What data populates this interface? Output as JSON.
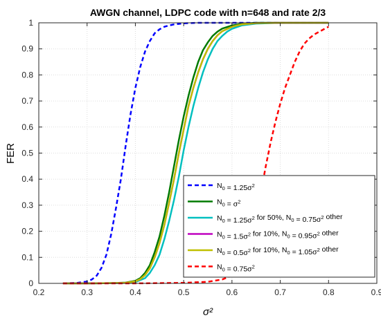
{
  "chart_data": {
    "type": "line",
    "title": "AWGN channel, LDPC code with n=648 and rate 2/3",
    "xlabel": "σ²",
    "ylabel": "FER",
    "xlim": [
      0.2,
      0.9
    ],
    "ylim": [
      0,
      1
    ],
    "xticks": [
      "0.2",
      "0.3",
      "0.4",
      "0.5",
      "0.6",
      "0.7",
      "0.8",
      "0.9"
    ],
    "yticks": [
      "0",
      "0.1",
      "0.2",
      "0.3",
      "0.4",
      "0.5",
      "0.6",
      "0.7",
      "0.8",
      "0.9",
      "1"
    ],
    "grid": true,
    "legend_position": "bottom-right",
    "series": [
      {
        "name": "N0 = 1.25σ²",
        "legend_parts": [
          "N",
          "0",
          " = 1.25σ",
          "2",
          ""
        ],
        "color": "#0000ff",
        "style": "dashed",
        "x": [
          0.25,
          0.28,
          0.3,
          0.31,
          0.32,
          0.33,
          0.34,
          0.35,
          0.36,
          0.37,
          0.38,
          0.39,
          0.4,
          0.41,
          0.42,
          0.43,
          0.44,
          0.45,
          0.46,
          0.47,
          0.48,
          0.5,
          0.53,
          0.56,
          0.6,
          0.65,
          0.7,
          0.8
        ],
        "y": [
          0.0,
          0.002,
          0.007,
          0.015,
          0.03,
          0.06,
          0.11,
          0.19,
          0.29,
          0.4,
          0.53,
          0.65,
          0.75,
          0.83,
          0.89,
          0.93,
          0.96,
          0.975,
          0.985,
          0.99,
          0.994,
          0.998,
          1.0,
          1.0,
          1.0,
          1.0,
          1.0,
          1.0
        ]
      },
      {
        "name": "N0 = σ²",
        "legend_parts": [
          "N",
          "0",
          " = σ",
          "2",
          ""
        ],
        "color": "#007a00",
        "style": "solid",
        "x": [
          0.25,
          0.3,
          0.35,
          0.38,
          0.4,
          0.41,
          0.42,
          0.43,
          0.44,
          0.45,
          0.46,
          0.47,
          0.48,
          0.49,
          0.5,
          0.51,
          0.52,
          0.53,
          0.54,
          0.55,
          0.56,
          0.57,
          0.58,
          0.6,
          0.62,
          0.65,
          0.7,
          0.8
        ],
        "y": [
          0.0,
          0.0,
          0.001,
          0.003,
          0.01,
          0.02,
          0.04,
          0.07,
          0.12,
          0.18,
          0.26,
          0.35,
          0.45,
          0.55,
          0.64,
          0.72,
          0.79,
          0.85,
          0.895,
          0.925,
          0.95,
          0.966,
          0.978,
          0.99,
          0.996,
          1.0,
          1.0,
          1.0
        ]
      },
      {
        "name": "N0 = 1.25σ² for 50%, N0 = 0.75σ² other",
        "legend_parts": [
          "N",
          "0",
          " = 1.25σ",
          "2",
          " for 50%, N",
          "0",
          " = 0.75σ",
          "2",
          " other"
        ],
        "color": "#00bfbf",
        "style": "solid",
        "x": [
          0.25,
          0.3,
          0.35,
          0.38,
          0.4,
          0.42,
          0.43,
          0.44,
          0.45,
          0.46,
          0.47,
          0.48,
          0.49,
          0.5,
          0.51,
          0.52,
          0.53,
          0.54,
          0.55,
          0.56,
          0.57,
          0.58,
          0.59,
          0.6,
          0.62,
          0.65,
          0.7,
          0.8
        ],
        "y": [
          0.0,
          0.0,
          0.001,
          0.002,
          0.005,
          0.02,
          0.04,
          0.07,
          0.11,
          0.17,
          0.24,
          0.32,
          0.41,
          0.51,
          0.6,
          0.68,
          0.75,
          0.81,
          0.86,
          0.9,
          0.93,
          0.95,
          0.966,
          0.977,
          0.99,
          0.997,
          1.0,
          1.0
        ]
      },
      {
        "name": "N0 = 1.5σ² for 10%, N0 = 0.95σ² other",
        "legend_parts": [
          "N",
          "0",
          " = 1.5σ",
          "2",
          " for 10%, N",
          "0",
          " = 0.95σ",
          "2",
          " other"
        ],
        "color": "#bf00bf",
        "style": "solid",
        "x": [
          0.25,
          0.3,
          0.35,
          0.38,
          0.4,
          0.41,
          0.42,
          0.43,
          0.44,
          0.45,
          0.46,
          0.47,
          0.48,
          0.49,
          0.5,
          0.51,
          0.52,
          0.53,
          0.54,
          0.55,
          0.56,
          0.57,
          0.58,
          0.6,
          0.62,
          0.65,
          0.7,
          0.8
        ],
        "y": [
          0.0,
          0.0,
          0.001,
          0.002,
          0.008,
          0.016,
          0.032,
          0.058,
          0.1,
          0.155,
          0.225,
          0.31,
          0.4,
          0.5,
          0.59,
          0.68,
          0.75,
          0.81,
          0.86,
          0.9,
          0.93,
          0.952,
          0.968,
          0.985,
          0.994,
          0.999,
          1.0,
          1.0
        ]
      },
      {
        "name": "N0 = 0.5σ² for 10%, N0 = 1.05σ² other",
        "legend_parts": [
          "N",
          "0",
          " = 0.5σ",
          "2",
          " for 10%, N",
          "0",
          " = 1.05σ",
          "2",
          " other"
        ],
        "color": "#bfbf00",
        "style": "solid",
        "x": [
          0.25,
          0.3,
          0.35,
          0.38,
          0.4,
          0.41,
          0.42,
          0.43,
          0.44,
          0.45,
          0.46,
          0.47,
          0.48,
          0.49,
          0.5,
          0.51,
          0.52,
          0.53,
          0.54,
          0.55,
          0.56,
          0.57,
          0.58,
          0.6,
          0.62,
          0.65,
          0.7,
          0.8
        ],
        "y": [
          0.0,
          0.0,
          0.001,
          0.002,
          0.008,
          0.016,
          0.032,
          0.058,
          0.1,
          0.155,
          0.225,
          0.31,
          0.4,
          0.5,
          0.59,
          0.68,
          0.75,
          0.81,
          0.86,
          0.9,
          0.93,
          0.952,
          0.968,
          0.985,
          0.994,
          0.999,
          1.0,
          1.0
        ]
      },
      {
        "name": "N0 = 0.75σ²",
        "legend_parts": [
          "N",
          "0",
          " = 0.75σ",
          "2",
          ""
        ],
        "color": "#ff0000",
        "style": "dashed",
        "x": [
          0.25,
          0.4,
          0.5,
          0.55,
          0.58,
          0.6,
          0.61,
          0.62,
          0.63,
          0.64,
          0.65,
          0.66,
          0.67,
          0.68,
          0.69,
          0.7,
          0.71,
          0.72,
          0.73,
          0.74,
          0.75,
          0.76,
          0.77,
          0.78,
          0.79,
          0.8
        ],
        "y": [
          0.0,
          0.0,
          0.002,
          0.006,
          0.015,
          0.03,
          0.05,
          0.08,
          0.13,
          0.2,
          0.27,
          0.35,
          0.45,
          0.54,
          0.62,
          0.69,
          0.75,
          0.8,
          0.85,
          0.89,
          0.92,
          0.94,
          0.955,
          0.965,
          0.975,
          0.985
        ]
      }
    ]
  }
}
